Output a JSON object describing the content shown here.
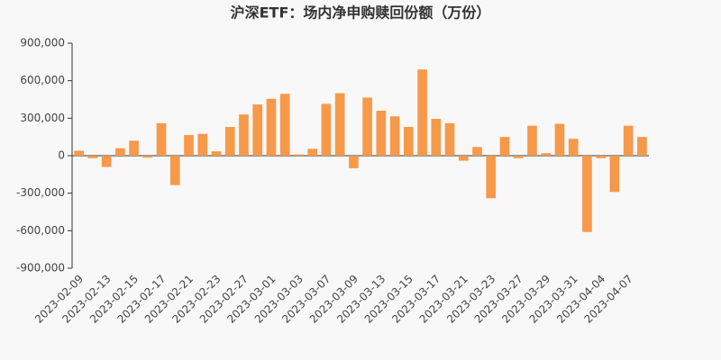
{
  "chart_data": {
    "type": "bar",
    "title": "沪深ETF：场内净申购赎回份额（万份）",
    "categories": [
      "2023-02-09",
      null,
      "2023-02-13",
      null,
      "2023-02-15",
      null,
      "2023-02-17",
      null,
      "2023-02-21",
      null,
      "2023-02-23",
      null,
      "2023-02-27",
      null,
      "2023-03-01",
      null,
      "2023-03-03",
      null,
      "2023-03-07",
      null,
      "2023-03-09",
      null,
      "2023-03-13",
      null,
      "2023-03-15",
      null,
      "2023-03-17",
      null,
      "2023-03-21",
      null,
      "2023-03-23",
      null,
      "2023-03-27",
      null,
      "2023-03-29",
      null,
      "2023-03-31",
      null,
      "2023-04-04",
      null,
      "2023-04-07",
      null
    ],
    "values": [
      40000,
      -20000,
      -90000,
      60000,
      120000,
      -15000,
      260000,
      -235000,
      165000,
      175000,
      35000,
      230000,
      330000,
      410000,
      455000,
      495000,
      10000,
      55000,
      415000,
      500000,
      -100000,
      465000,
      360000,
      315000,
      230000,
      690000,
      295000,
      260000,
      -40000,
      70000,
      -340000,
      150000,
      -20000,
      240000,
      20000,
      255000,
      135000,
      -610000,
      -20000,
      -290000,
      240000,
      150000
    ],
    "color": "#f7994a",
    "ylim": [
      -900000,
      900000
    ],
    "yticks": [
      {
        "value": -900000,
        "label": "-900,000"
      },
      {
        "value": -600000,
        "label": "-600,000"
      },
      {
        "value": -300000,
        "label": "-300,000"
      },
      0,
      {
        "value": 300000,
        "label": "300,000"
      },
      {
        "value": 600000,
        "label": "600,000"
      },
      {
        "value": 900000,
        "label": "900,000"
      }
    ]
  }
}
